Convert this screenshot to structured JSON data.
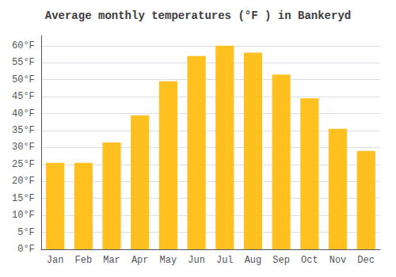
{
  "chart_data": {
    "type": "bar",
    "title": "Average monthly temperatures (°F ) in Bankeryd",
    "categories": [
      "Jan",
      "Feb",
      "Mar",
      "Apr",
      "May",
      "Jun",
      "Jul",
      "Aug",
      "Sep",
      "Oct",
      "Nov",
      "Dec"
    ],
    "values": [
      25.5,
      25.5,
      31.5,
      39.5,
      49.5,
      57.0,
      60.0,
      58.0,
      51.5,
      44.5,
      35.5,
      29.0
    ],
    "color": "#FFC020",
    "ylim": [
      0,
      63
    ],
    "yticks": [
      {
        "value": 0,
        "label": "0°F"
      },
      {
        "value": 5,
        "label": "5°F"
      },
      {
        "value": 10,
        "label": "10°F"
      },
      {
        "value": 15,
        "label": "15°F"
      },
      {
        "value": 20,
        "label": "20°F"
      },
      {
        "value": 25,
        "label": "25°F"
      },
      {
        "value": 30,
        "label": "30°F"
      },
      {
        "value": 35,
        "label": "35°F"
      },
      {
        "value": 40,
        "label": "40°F"
      },
      {
        "value": 45,
        "label": "45°F"
      },
      {
        "value": 50,
        "label": "50°F"
      },
      {
        "value": 55,
        "label": "55°F"
      },
      {
        "value": 60,
        "label": "60°F"
      }
    ],
    "grid": true
  }
}
